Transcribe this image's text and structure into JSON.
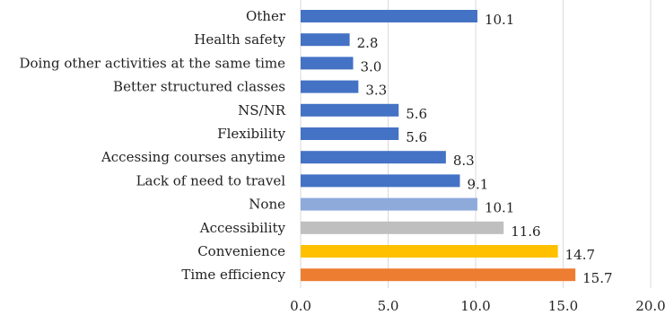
{
  "chart_data": {
    "type": "bar",
    "orientation": "horizontal",
    "title": "",
    "xlabel": "",
    "ylabel": "",
    "xlim": [
      0,
      20
    ],
    "xticks": [
      "0.0",
      "5.0",
      "10.0",
      "15.0",
      "20.0"
    ],
    "grid": "vertical",
    "legend": "none",
    "categories": [
      "Other",
      "Health safety",
      "Doing other activities at the same time",
      "Better structured classes",
      "NS/NR",
      "Flexibility",
      "Accessing courses anytime",
      "Lack of need to travel",
      "None",
      "Accessibility",
      "Convenience",
      "Time efficiency"
    ],
    "values": [
      10.1,
      2.8,
      3.0,
      3.3,
      5.6,
      5.6,
      8.3,
      9.1,
      10.1,
      11.6,
      14.7,
      15.7
    ],
    "value_labels": [
      "10.1",
      "2.8",
      "3.0",
      "3.3",
      "5.6",
      "5.6",
      "8.3",
      "9.1",
      "10.1",
      "11.6",
      "14.7",
      "15.7"
    ],
    "colors": [
      "#4472c4",
      "#4472c4",
      "#4472c4",
      "#4472c4",
      "#4472c4",
      "#4472c4",
      "#4472c4",
      "#4472c4",
      "#8eaadb",
      "#bfbfbf",
      "#ffc000",
      "#ed7d31"
    ]
  }
}
